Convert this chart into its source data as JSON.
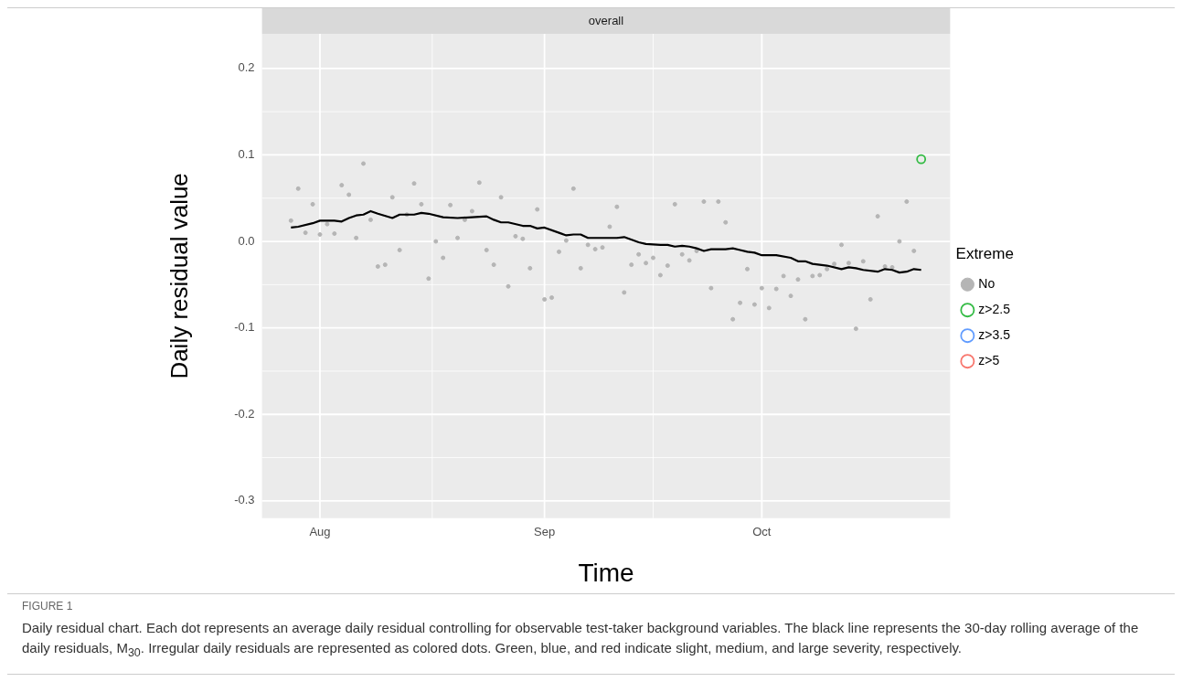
{
  "chart_data": {
    "type": "scatter",
    "title": "overall",
    "xlabel": "Time",
    "ylabel": "Daily residual value",
    "legend_title": "Extreme",
    "legend": "right",
    "grid": true,
    "marker": "circle",
    "xlim": [
      "--07-24",
      "--10-27"
    ],
    "xticks": [
      {
        "value": "--08-01",
        "label": "Aug"
      },
      {
        "value": "--09-01",
        "label": "Sep"
      },
      {
        "value": "--10-01",
        "label": "Oct"
      }
    ],
    "ylim": [
      -0.32,
      0.24
    ],
    "yticks": [
      -0.3,
      -0.2,
      -0.1,
      {
        "value": 0,
        "label": "0.0"
      },
      0.1,
      0.2
    ],
    "series": [
      {
        "name": "No",
        "color": "#b5b5b5",
        "x": [
          "--07-28",
          "--07-29",
          "--07-30",
          "--07-31",
          "--08-01",
          "--08-02",
          "--08-03",
          "--08-04",
          "--08-05",
          "--08-06",
          "--08-07",
          "--08-08",
          "--08-09",
          "--08-10",
          "--08-11",
          "--08-12",
          "--08-13",
          "--08-14",
          "--08-15",
          "--08-16",
          "--08-17",
          "--08-18",
          "--08-19",
          "--08-20",
          "--08-21",
          "--08-22",
          "--08-23",
          "--08-24",
          "--08-25",
          "--08-26",
          "--08-27",
          "--08-28",
          "--08-29",
          "--08-30",
          "--08-31",
          "--09-01",
          "--09-02",
          "--09-03",
          "--09-04",
          "--09-05",
          "--09-06",
          "--09-07",
          "--09-08",
          "--09-09",
          "--09-10",
          "--09-11",
          "--09-12",
          "--09-13",
          "--09-14",
          "--09-15",
          "--09-16",
          "--09-17",
          "--09-18",
          "--09-19",
          "--09-20",
          "--09-21",
          "--09-22",
          "--09-23",
          "--09-24",
          "--09-25",
          "--09-26",
          "--09-27",
          "--09-28",
          "--09-29",
          "--09-30",
          "--10-01",
          "--10-02",
          "--10-03",
          "--10-04",
          "--10-05",
          "--10-06",
          "--10-07",
          "--10-08",
          "--10-09",
          "--10-10",
          "--10-11",
          "--10-12",
          "--10-13",
          "--10-14",
          "--10-15",
          "--10-16",
          "--10-17",
          "--10-18",
          "--10-19",
          "--10-20",
          "--10-21",
          "--10-22"
        ],
        "values": [
          0.024,
          0.061,
          0.01,
          0.043,
          0.008,
          0.02,
          0.009,
          0.065,
          0.054,
          0.004,
          0.09,
          0.025,
          -0.029,
          -0.027,
          0.051,
          -0.01,
          0.031,
          0.067,
          0.043,
          -0.043,
          0.0,
          -0.019,
          0.042,
          0.004,
          0.025,
          0.035,
          0.068,
          -0.01,
          -0.027,
          0.051,
          -0.052,
          0.006,
          0.003,
          -0.031,
          0.037,
          -0.067,
          -0.065,
          -0.012,
          0.001,
          0.061,
          -0.031,
          -0.004,
          -0.009,
          -0.007,
          0.017,
          0.04,
          -0.059,
          -0.027,
          -0.015,
          -0.025,
          -0.019,
          -0.039,
          -0.028,
          0.043,
          -0.015,
          -0.022,
          -0.011,
          0.046,
          -0.054,
          0.046,
          0.022,
          -0.09,
          -0.071,
          -0.032,
          -0.073,
          -0.054,
          -0.077,
          -0.055,
          -0.04,
          -0.063,
          -0.044,
          -0.09,
          -0.04,
          -0.039,
          -0.032,
          -0.026,
          -0.004,
          -0.025,
          -0.101,
          -0.023,
          -0.067,
          0.029,
          -0.029,
          -0.03,
          0.0,
          0.046,
          -0.011
        ]
      },
      {
        "name": "z>2.5",
        "color": "#33bb44",
        "x": [
          "--10-23"
        ],
        "values": [
          0.095
        ]
      },
      {
        "name": "z>3.5",
        "color": "#619cff"
      },
      {
        "name": "z>5",
        "color": "#f8766d"
      },
      {
        "type": "line",
        "color": "#000000",
        "marker": "none",
        "x": [
          "--07-28",
          "--07-29",
          "--07-31",
          "--08-01",
          "--08-03",
          "--08-04",
          "--08-05",
          "--08-06",
          "--08-07",
          "--08-08",
          "--08-09",
          "--08-11",
          "--08-12",
          "--08-14",
          "--08-15",
          "--08-16",
          "--08-18",
          "--08-20",
          "--08-22",
          "--08-24",
          "--08-25",
          "--08-26",
          "--08-27",
          "--08-29",
          "--08-30",
          "--08-31",
          "--09-01",
          "--09-03",
          "--09-04",
          "--09-05",
          "--09-06",
          "--09-07",
          "--09-08",
          "--09-10",
          "--09-11",
          "--09-12",
          "--09-14",
          "--09-15",
          "--09-17",
          "--09-18",
          "--09-19",
          "--09-20",
          "--09-21",
          "--09-22",
          "--09-23",
          "--09-24",
          "--09-26",
          "--09-27",
          "--09-28",
          "--09-29",
          "--09-30",
          "--10-01",
          "--10-03",
          "--10-05",
          "--10-06",
          "--10-07",
          "--10-08",
          "--10-10",
          "--10-12",
          "--10-13",
          "--10-14",
          "--10-15",
          "--10-17",
          "--10-18",
          "--10-19",
          "--10-20",
          "--10-21",
          "--10-22",
          "--10-23"
        ],
        "values": [
          0.016,
          0.017,
          0.021,
          0.024,
          0.024,
          0.023,
          0.027,
          0.03,
          0.031,
          0.035,
          0.032,
          0.027,
          0.031,
          0.031,
          0.033,
          0.032,
          0.028,
          0.027,
          0.028,
          0.029,
          0.025,
          0.022,
          0.022,
          0.018,
          0.018,
          0.015,
          0.016,
          0.01,
          0.007,
          0.008,
          0.008,
          0.004,
          0.004,
          0.004,
          0.004,
          0.005,
          -0.001,
          -0.003,
          -0.004,
          -0.004,
          -0.006,
          -0.005,
          -0.006,
          -0.008,
          -0.011,
          -0.009,
          -0.009,
          -0.008,
          -0.01,
          -0.012,
          -0.013,
          -0.016,
          -0.016,
          -0.019,
          -0.023,
          -0.023,
          -0.026,
          -0.028,
          -0.032,
          -0.03,
          -0.031,
          -0.033,
          -0.035,
          -0.032,
          -0.033,
          -0.036,
          -0.035,
          -0.032,
          -0.033
        ]
      }
    ],
    "annotations": [
      "FIGURE 1",
      "Daily residual chart. Each dot represents an average daily residual controlling for observable test-taker background variables. The black line represents the 30-day rolling average of the daily residuals, M$_{30}$. Irregular daily residuals are represented as colored dots. Green, blue, and red indicate slight, medium, and large severity, respectively."
    ]
  }
}
